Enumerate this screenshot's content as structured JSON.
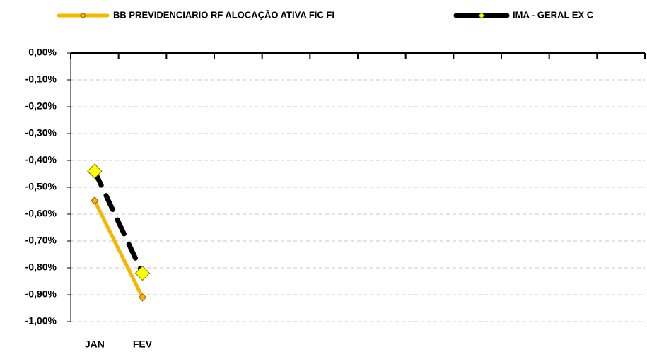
{
  "chart_data": {
    "type": "line",
    "categories": [
      "JAN",
      "FEV",
      null,
      null,
      null,
      null,
      null,
      null,
      null,
      null,
      null,
      null
    ],
    "series": [
      {
        "name": "BB PREVIDENCIARIO RF ALOCAÇÃO ATIVA FIC FI",
        "color": "#f5b800",
        "values": [
          -0.55,
          -0.91,
          null,
          null,
          null,
          null,
          null,
          null,
          null,
          null,
          null,
          null
        ]
      },
      {
        "name": "IMA - GERAL EX C",
        "color": "#000000",
        "values": [
          -0.44,
          -0.82,
          null,
          null,
          null,
          null,
          null,
          null,
          null,
          null,
          null,
          null
        ]
      }
    ],
    "ylim": [
      -1.0,
      0
    ],
    "yticks": [
      {
        "value": 0,
        "label": "0,00%"
      },
      {
        "value": -0.1,
        "label": "-0,10%"
      },
      {
        "value": -0.2,
        "label": "-0,20%"
      },
      {
        "value": -0.3,
        "label": "-0,30%"
      },
      {
        "value": -0.4,
        "label": "-0,40%"
      },
      {
        "value": -0.5,
        "label": "-0,50%"
      },
      {
        "value": -0.6,
        "label": "-0,60%"
      },
      {
        "value": -0.7,
        "label": "-0,70%"
      },
      {
        "value": -0.8,
        "label": "-0,80%"
      },
      {
        "value": -0.9,
        "label": "-0,90%"
      },
      {
        "value": -1.0,
        "label": "-1,00%"
      }
    ],
    "grid": true,
    "legend": "top"
  }
}
